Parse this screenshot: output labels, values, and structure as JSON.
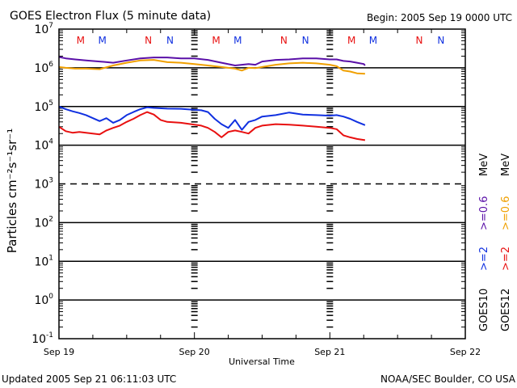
{
  "header": {
    "title": "GOES Electron Flux (5 minute data)",
    "begin": "Begin: 2005 Sep 19 0000 UTC"
  },
  "footer": {
    "updated": "Updated 2005 Sep 21 06:11:03 UTC",
    "credit": "NOAA/SEC Boulder, CO USA"
  },
  "colors": {
    "goes10_high": "#5a10a8",
    "goes12_high": "#f0a000",
    "goes10_low": "#1030e0",
    "goes12_low": "#e81010",
    "mark_M": "#e81010",
    "mark_N_blue": "#1030e0"
  },
  "chart_data": {
    "type": "line",
    "title": "GOES Electron Flux (5 minute data)",
    "xlabel": "Universal Time",
    "ylabel": "Particles cm⁻²s⁻¹sr⁻¹",
    "yscale": "log",
    "ylim": [
      0.1,
      10000000
    ],
    "xlim_days": [
      0,
      3
    ],
    "x_ticks": [
      "Sep 19",
      "Sep 20",
      "Sep 21",
      "Sep 22"
    ],
    "y_ticks": [
      {
        "base": "10",
        "exp": "7",
        "value": 10000000
      },
      {
        "base": "10",
        "exp": "6",
        "value": 1000000
      },
      {
        "base": "10",
        "exp": "5",
        "value": 100000
      },
      {
        "base": "10",
        "exp": "4",
        "value": 10000
      },
      {
        "base": "10",
        "exp": "3",
        "value": 1000
      },
      {
        "base": "10",
        "exp": "2",
        "value": 100
      },
      {
        "base": "10",
        "exp": "1",
        "value": 10
      },
      {
        "base": "10",
        "exp": "0",
        "value": 1
      },
      {
        "base": "10",
        "exp": "-1",
        "value": 0.1
      }
    ],
    "threshold_lines": [
      {
        "value": 1000000,
        "style": "solid"
      },
      {
        "value": 100000,
        "style": "solid"
      },
      {
        "value": 10000,
        "style": "solid"
      },
      {
        "value": 1000,
        "style": "dashed"
      },
      {
        "value": 100,
        "style": "solid"
      },
      {
        "value": 10,
        "style": "solid"
      },
      {
        "value": 1,
        "style": "solid"
      }
    ],
    "legend": {
      "placement": "right",
      "columns": [
        {
          "satellite": "GOES10",
          "low": ">=2",
          "high": ">=0.6",
          "unit": "MeV"
        },
        {
          "satellite": "GOES12",
          "low": ">=2",
          "high": ">=0.6",
          "unit": "MeV"
        }
      ]
    },
    "markers": [
      {
        "label": "M",
        "day": 0.16,
        "color": "red"
      },
      {
        "label": "M",
        "day": 0.32,
        "color": "blue"
      },
      {
        "label": "N",
        "day": 0.66,
        "color": "red"
      },
      {
        "label": "N",
        "day": 0.82,
        "color": "blue"
      },
      {
        "label": "M",
        "day": 1.16,
        "color": "red"
      },
      {
        "label": "M",
        "day": 1.32,
        "color": "blue"
      },
      {
        "label": "N",
        "day": 1.66,
        "color": "red"
      },
      {
        "label": "N",
        "day": 1.82,
        "color": "blue"
      },
      {
        "label": "M",
        "day": 2.16,
        "color": "red"
      },
      {
        "label": "M",
        "day": 2.32,
        "color": "blue"
      },
      {
        "label": "N",
        "day": 2.66,
        "color": "red"
      },
      {
        "label": "N",
        "day": 2.82,
        "color": "blue"
      }
    ],
    "series": [
      {
        "name": "GOES10 >=0.6 MeV",
        "color": "#5a10a8",
        "x": [
          0,
          0.05,
          0.12,
          0.2,
          0.3,
          0.4,
          0.5,
          0.6,
          0.7,
          0.8,
          0.9,
          1.0,
          1.1,
          1.2,
          1.3,
          1.4,
          1.45,
          1.5,
          1.6,
          1.7,
          1.8,
          1.9,
          2.0,
          2.05,
          2.1,
          2.15,
          2.2,
          2.25,
          2.26
        ],
        "values": [
          1900000,
          1750000,
          1650000,
          1550000,
          1450000,
          1350000,
          1550000,
          1750000,
          1850000,
          1850000,
          1750000,
          1750000,
          1600000,
          1350000,
          1150000,
          1250000,
          1200000,
          1450000,
          1600000,
          1650000,
          1750000,
          1750000,
          1650000,
          1650000,
          1500000,
          1450000,
          1350000,
          1250000,
          1150000
        ]
      },
      {
        "name": "GOES12 >=0.6 MeV",
        "color": "#f0a000",
        "x": [
          0,
          0.05,
          0.12,
          0.2,
          0.3,
          0.4,
          0.5,
          0.6,
          0.7,
          0.8,
          0.9,
          1.0,
          1.1,
          1.2,
          1.3,
          1.35,
          1.4,
          1.45,
          1.5,
          1.6,
          1.7,
          1.8,
          1.9,
          2.0,
          2.05,
          2.1,
          2.15,
          2.2,
          2.26
        ],
        "values": [
          1050000,
          1000000,
          950000,
          950000,
          920000,
          1150000,
          1350000,
          1550000,
          1600000,
          1400000,
          1350000,
          1250000,
          1150000,
          1050000,
          950000,
          850000,
          1000000,
          980000,
          1050000,
          1200000,
          1300000,
          1350000,
          1300000,
          1200000,
          1100000,
          850000,
          800000,
          720000,
          700000
        ]
      },
      {
        "name": "GOES10 >=2 MeV",
        "color": "#1030e0",
        "x": [
          0,
          0.05,
          0.1,
          0.15,
          0.2,
          0.3,
          0.35,
          0.4,
          0.45,
          0.5,
          0.55,
          0.6,
          0.65,
          0.7,
          0.8,
          0.9,
          1.0,
          1.05,
          1.1,
          1.15,
          1.2,
          1.25,
          1.3,
          1.35,
          1.4,
          1.45,
          1.5,
          1.6,
          1.7,
          1.8,
          1.9,
          2.0,
          2.05,
          2.1,
          2.15,
          2.2,
          2.26
        ],
        "values": [
          100000,
          85000,
          75000,
          68000,
          60000,
          42000,
          50000,
          38000,
          45000,
          60000,
          72000,
          85000,
          95000,
          92000,
          88000,
          87000,
          82000,
          80000,
          72000,
          48000,
          35000,
          28000,
          45000,
          25000,
          40000,
          45000,
          55000,
          60000,
          70000,
          62000,
          60000,
          58000,
          60000,
          55000,
          48000,
          40000,
          33000
        ]
      },
      {
        "name": "GOES12 >=2 MeV",
        "color": "#e81010",
        "x": [
          0,
          0.05,
          0.1,
          0.15,
          0.2,
          0.3,
          0.35,
          0.4,
          0.45,
          0.5,
          0.55,
          0.6,
          0.65,
          0.7,
          0.75,
          0.8,
          0.9,
          1.0,
          1.05,
          1.1,
          1.15,
          1.2,
          1.25,
          1.3,
          1.35,
          1.4,
          1.45,
          1.5,
          1.6,
          1.7,
          1.8,
          1.9,
          2.0,
          2.05,
          2.1,
          2.15,
          2.2,
          2.26
        ],
        "values": [
          30000,
          23000,
          21000,
          22000,
          21000,
          19000,
          24000,
          28000,
          32000,
          40000,
          48000,
          60000,
          72000,
          62000,
          45000,
          40000,
          38000,
          34000,
          32000,
          28000,
          22000,
          16000,
          22000,
          24000,
          22000,
          20000,
          28000,
          32000,
          35000,
          34000,
          32000,
          30000,
          28000,
          26000,
          18000,
          16000,
          14500,
          13500
        ]
      }
    ]
  }
}
